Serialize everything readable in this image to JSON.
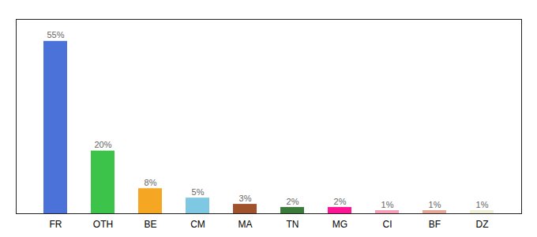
{
  "chart_data": {
    "type": "bar",
    "categories": [
      "FR",
      "OTH",
      "BE",
      "CM",
      "MA",
      "TN",
      "MG",
      "CI",
      "BF",
      "DZ"
    ],
    "values": [
      55,
      20,
      8,
      5,
      3,
      2,
      2,
      1,
      1,
      1
    ],
    "value_labels": [
      "55%",
      "20%",
      "8%",
      "5%",
      "3%",
      "2%",
      "2%",
      "1%",
      "1%",
      "1%"
    ],
    "colors": [
      "#4a72d9",
      "#3cc44a",
      "#f5a623",
      "#7ec8e3",
      "#a0522d",
      "#3a7a3a",
      "#ff1493",
      "#f4a0b5",
      "#e8a898",
      "#f0f0d8"
    ],
    "ylim": [
      0,
      62
    ],
    "data_labels": true,
    "tick_labels": "x",
    "grid": false
  }
}
